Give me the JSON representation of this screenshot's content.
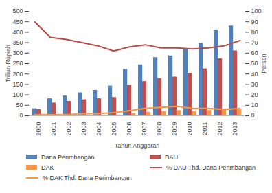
{
  "chart_data": {
    "type": "bar",
    "x_label": "Tahun Anggaran",
    "y_label": "Triliun Rupiah",
    "y2_label": "Persen",
    "categories": [
      "2000",
      "2001",
      "2002",
      "2003",
      "2004",
      "2005",
      "2006",
      "2007",
      "2008",
      "2009",
      "2010",
      "2011",
      "2012",
      "2013"
    ],
    "series": [
      {
        "name": "Dana Perimbangan",
        "type": "bar",
        "color": "#4f81bd",
        "values": [
          34,
          82,
          95,
          110,
          122,
          143,
          222,
          244,
          279,
          287,
          317,
          347,
          411,
          430
        ]
      },
      {
        "name": "DAU",
        "type": "bar",
        "color": "#c0504d",
        "values": [
          30,
          61,
          69,
          77,
          82,
          88,
          145,
          164,
          179,
          186,
          203,
          225,
          273,
          311
        ]
      },
      {
        "name": "DAK",
        "type": "bar",
        "color": "#f79646",
        "values": [
          0.5,
          0.7,
          1,
          2.5,
          3,
          4,
          11,
          17,
          21,
          25,
          21,
          25,
          26,
          31
        ]
      },
      {
        "name": "% DAU Thd. Dana Perimbangan",
        "type": "line",
        "axis": "y2",
        "color": "#b84c48",
        "values": [
          90,
          75,
          73,
          70,
          67,
          62,
          66,
          68,
          65,
          65,
          64,
          65,
          67,
          72
        ]
      },
      {
        "name": "% DAK Thd. Dana Perimbangan",
        "type": "line",
        "axis": "y2",
        "color": "#f79646",
        "values": [
          1,
          1,
          1,
          2,
          2,
          3,
          5,
          7,
          8,
          9,
          7,
          7,
          6,
          7
        ]
      }
    ],
    "ylim": [
      0,
      500
    ],
    "yticks": [
      0,
      50,
      100,
      150,
      200,
      250,
      300,
      350,
      400,
      450,
      500
    ],
    "y2lim": [
      0,
      100
    ],
    "y2ticks": [
      0,
      10,
      20,
      30,
      40,
      50,
      60,
      70,
      80,
      90,
      100
    ],
    "grid": false,
    "legend": "bottom"
  }
}
